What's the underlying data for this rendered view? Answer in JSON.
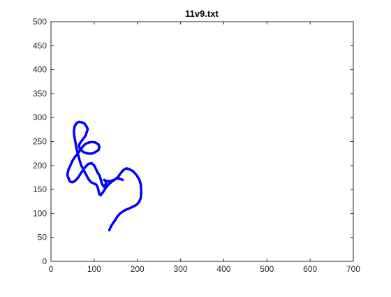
{
  "chart_data": {
    "type": "line",
    "title": "11v9.txt",
    "xlabel": "",
    "ylabel": "",
    "xlim": [
      0,
      700
    ],
    "ylim": [
      0,
      500
    ],
    "xticks": [
      0,
      100,
      200,
      300,
      400,
      500,
      600,
      700
    ],
    "yticks": [
      0,
      50,
      100,
      150,
      200,
      250,
      300,
      350,
      400,
      450,
      500
    ],
    "grid": false,
    "series_color": "#0000ff",
    "series": [
      {
        "x": [
          135,
          140,
          148,
          155,
          160,
          165,
          172,
          180,
          190,
          198,
          204,
          208,
          209,
          208,
          205,
          198,
          190,
          182,
          175,
          170,
          165,
          160,
          155,
          150,
          147,
          142,
          135,
          128,
          121,
          115,
          112,
          110,
          108,
          105,
          100,
          98,
          93,
          88,
          82,
          75,
          70,
          66,
          63,
          60,
          58,
          56,
          54,
          53,
          55,
          60,
          65,
          72,
          78,
          82,
          85,
          83,
          80,
          74,
          70,
          66,
          65,
          67,
          75,
          85,
          95,
          103,
          110,
          112,
          110,
          103,
          95,
          88,
          80,
          74,
          70,
          65,
          60,
          55,
          50,
          45,
          40,
          38,
          42,
          45,
          50,
          56,
          63,
          70,
          78,
          86,
          94,
          100,
          104,
          108,
          112,
          115,
          117,
          119,
          121,
          122,
          126,
          128,
          126,
          124,
          123,
          127,
          133,
          140,
          146,
          150,
          155,
          160,
          166
        ],
        "y": [
          65,
          75,
          85,
          95,
          100,
          103,
          107,
          110,
          114,
          118,
          124,
          133,
          145,
          160,
          170,
          180,
          188,
          192,
          194,
          192,
          188,
          182,
          176,
          172,
          170,
          167,
          162,
          155,
          145,
          138,
          140,
          148,
          155,
          160,
          162,
          163,
          165,
          170,
          180,
          192,
          200,
          212,
          222,
          232,
          242,
          252,
          262,
          272,
          282,
          289,
          291,
          290,
          287,
          282,
          276,
          270,
          262,
          255,
          250,
          245,
          240,
          235,
          228,
          225,
          225,
          228,
          232,
          238,
          244,
          248,
          249,
          248,
          245,
          240,
          235,
          229,
          223,
          217,
          210,
          200,
          190,
          180,
          170,
          166,
          165,
          168,
          175,
          185,
          195,
          203,
          205,
          200,
          193,
          185,
          180,
          172,
          165,
          160,
          158,
          156,
          160,
          164,
          168,
          170,
          170,
          168,
          167,
          168,
          170,
          172,
          173,
          172,
          170
        ]
      }
    ]
  }
}
